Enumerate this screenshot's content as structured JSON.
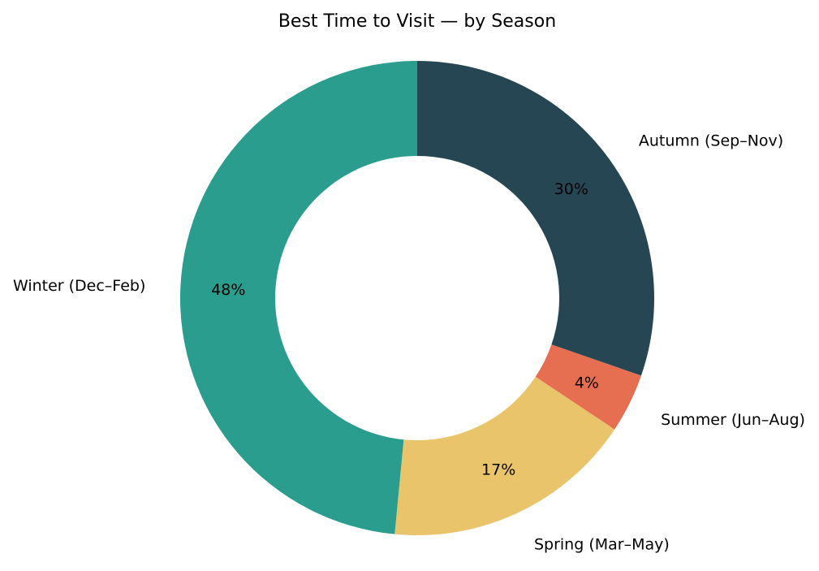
{
  "chart_data": {
    "type": "pie",
    "donut": true,
    "title": "Best Time to Visit — by Season",
    "start_angle_deg": 90,
    "direction": "clockwise",
    "slices": [
      {
        "label": "Autumn (Sep–Nov)",
        "value": 30,
        "pct_label": "30%",
        "color": "#264653"
      },
      {
        "label": "Summer (Jun–Aug)",
        "value": 4,
        "pct_label": "4%",
        "color": "#e76f51"
      },
      {
        "label": "Spring (Mar–May)",
        "value": 17,
        "pct_label": "17%",
        "color": "#e9c46a"
      },
      {
        "label": "Winter (Dec–Feb)",
        "value": 48,
        "pct_label": "48%",
        "color": "#2a9d8f"
      }
    ],
    "legend": "none",
    "grid": false
  }
}
